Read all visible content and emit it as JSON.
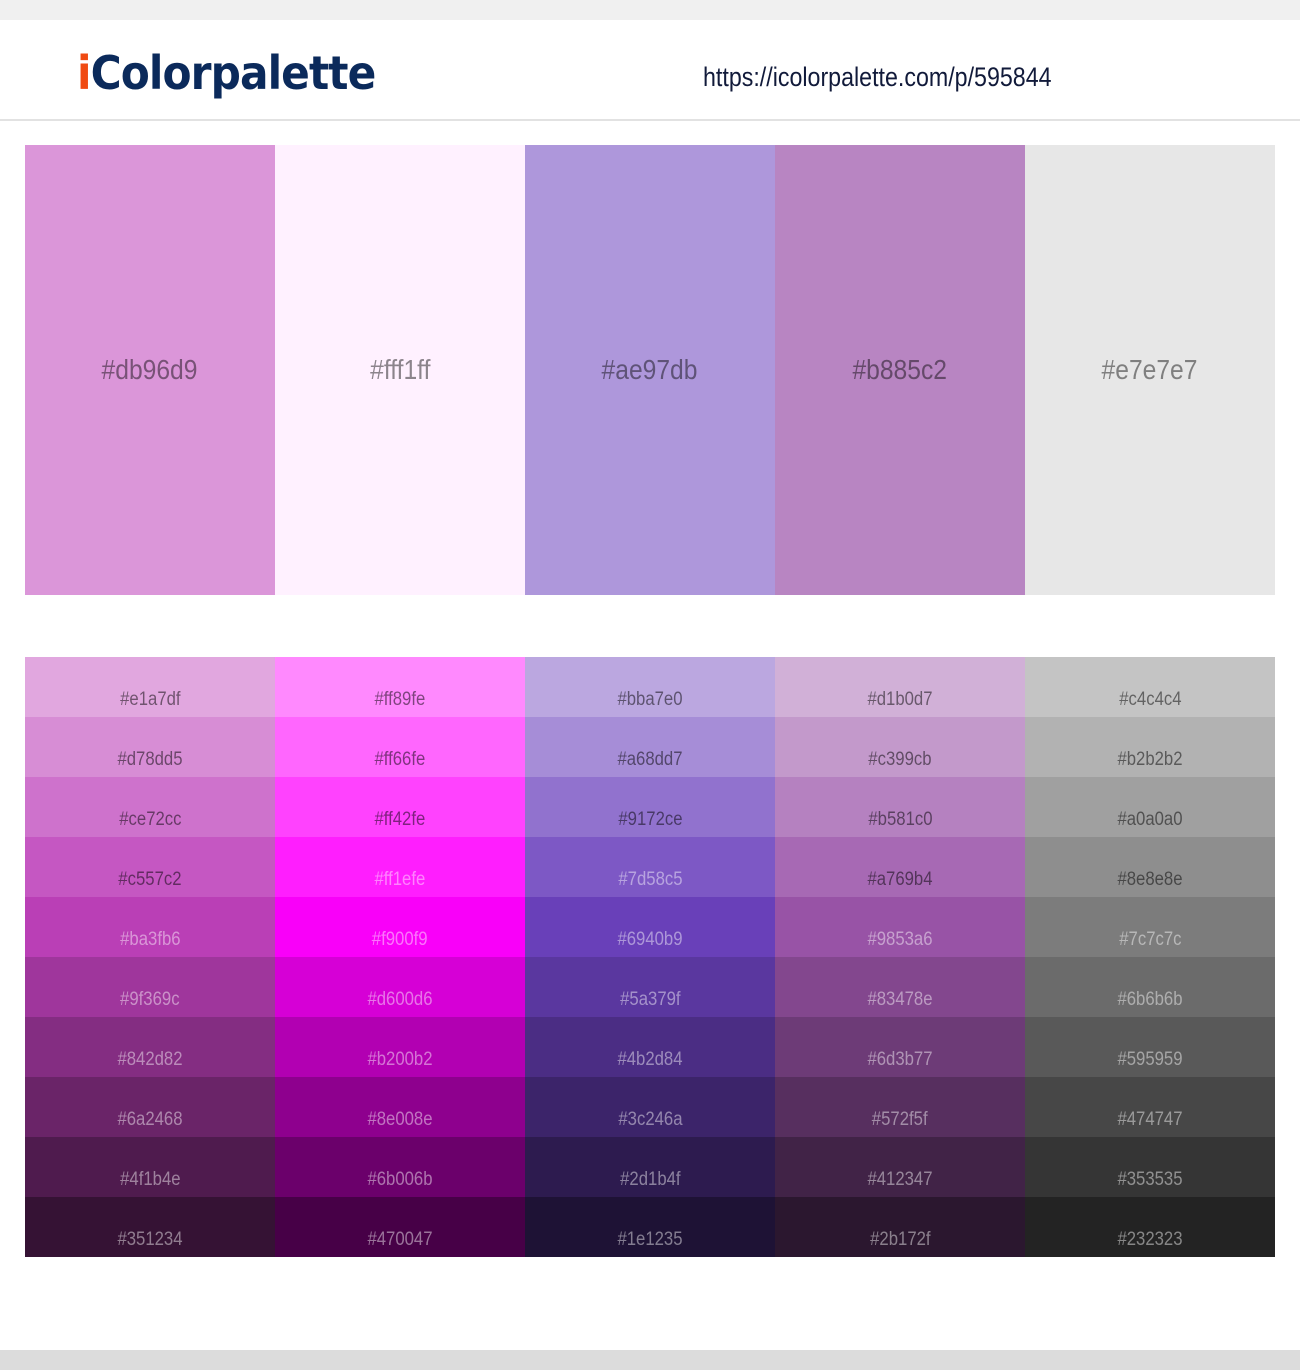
{
  "header": {
    "logo_i": "i",
    "logo_rest": "Colorpalette",
    "url": "https://icolorpalette.com/p/595844"
  },
  "palette": [
    "#db96d9",
    "#fff1ff",
    "#ae97db",
    "#b885c2",
    "#e7e7e7"
  ],
  "shades": [
    [
      "#e1a7df",
      "#d78dd5",
      "#ce72cc",
      "#c557c2",
      "#ba3fb6",
      "#9f369c",
      "#842d82",
      "#6a2468",
      "#4f1b4e",
      "#351234"
    ],
    [
      "#ff89fe",
      "#ff66fe",
      "#ff42fe",
      "#ff1efe",
      "#f900f9",
      "#d600d6",
      "#b200b2",
      "#8e008e",
      "#6b006b",
      "#470047"
    ],
    [
      "#bba7e0",
      "#a68dd7",
      "#9172ce",
      "#7d58c5",
      "#6940b9",
      "#5a379f",
      "#4b2d84",
      "#3c246a",
      "#2d1b4f",
      "#1e1235"
    ],
    [
      "#d1b0d7",
      "#c399cb",
      "#b581c0",
      "#a769b4",
      "#9853a6",
      "#83478e",
      "#6d3b77",
      "#572f5f",
      "#412347",
      "#2b172f"
    ],
    [
      "#c4c4c4",
      "#b2b2b2",
      "#a0a0a0",
      "#8e8e8e",
      "#7c7c7c",
      "#6b6b6b",
      "#595959",
      "#474747",
      "#353535",
      "#232323"
    ]
  ]
}
